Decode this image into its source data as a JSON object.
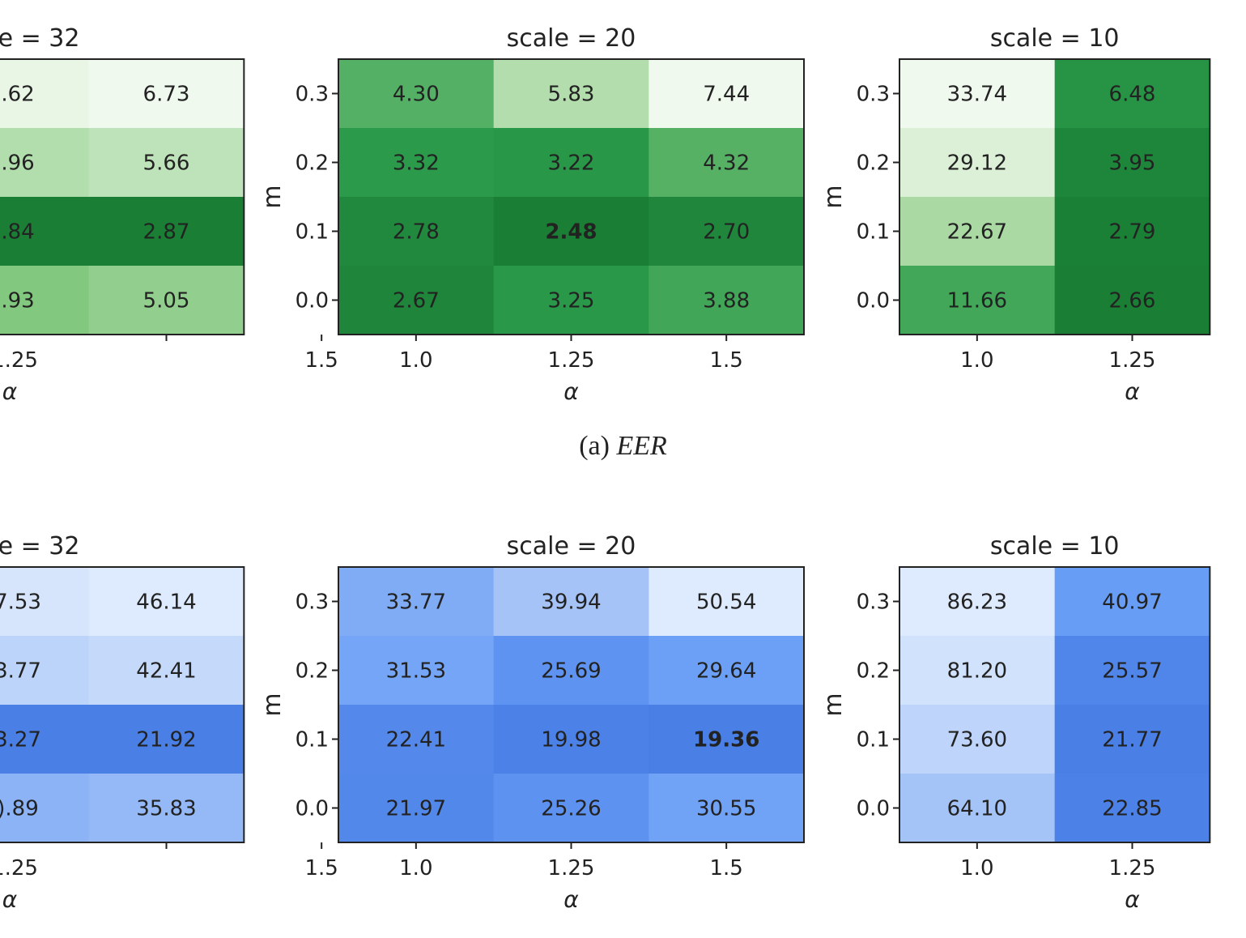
{
  "caption": {
    "prefix": "(a)",
    "label": "EER"
  },
  "chart_data": [
    {
      "type": "heatmap",
      "metric": "EER",
      "colormap": "greens",
      "title": "e = 32",
      "xlabel": "α",
      "x_tick_labels": [
        "1.25",
        "1.5"
      ],
      "rows": [
        "0.3",
        "0.2",
        "0.1",
        "0.0"
      ],
      "cell_text": [
        [
          ".62",
          "6.73"
        ],
        [
          ".96",
          "5.66"
        ],
        [
          ".84",
          "2.87"
        ],
        [
          ".93",
          "5.05"
        ]
      ],
      "values": [
        [
          null,
          6.73
        ],
        [
          null,
          5.66
        ],
        [
          null,
          2.87
        ],
        [
          null,
          5.05
        ]
      ]
    },
    {
      "type": "heatmap",
      "metric": "EER",
      "colormap": "greens",
      "title": "scale = 20",
      "xlabel": "α",
      "ylabel": "m",
      "x_tick_labels": [
        "1.0",
        "1.25",
        "1.5"
      ],
      "y_tick_labels": [
        "0.3",
        "0.2",
        "0.1",
        "0.0"
      ],
      "rows": [
        "0.3",
        "0.2",
        "0.1",
        "0.0"
      ],
      "cell_text": [
        [
          "4.30",
          "5.83",
          "7.44"
        ],
        [
          "3.32",
          "3.22",
          "4.32"
        ],
        [
          "2.78",
          "2.48",
          "2.70"
        ],
        [
          "2.67",
          "3.25",
          "3.88"
        ]
      ],
      "values": [
        [
          4.3,
          5.83,
          7.44
        ],
        [
          3.32,
          3.22,
          4.32
        ],
        [
          2.78,
          2.48,
          2.7
        ],
        [
          2.67,
          3.25,
          3.88
        ]
      ],
      "bold_cell": [
        2,
        1
      ]
    },
    {
      "type": "heatmap",
      "metric": "EER",
      "colormap": "greens",
      "title": "scale = 10",
      "xlabel": "α",
      "ylabel": "m",
      "x_tick_labels": [
        "1.0",
        "1.25"
      ],
      "y_tick_labels": [
        "0.3",
        "0.2",
        "0.1",
        "0.0"
      ],
      "rows": [
        "0.3",
        "0.2",
        "0.1",
        "0.0"
      ],
      "cell_text": [
        [
          "33.74",
          "6.48"
        ],
        [
          "29.12",
          "3.95"
        ],
        [
          "22.67",
          "2.79"
        ],
        [
          "11.66",
          "2.66"
        ]
      ],
      "values": [
        [
          33.74,
          6.48
        ],
        [
          29.12,
          3.95
        ],
        [
          22.67,
          2.79
        ],
        [
          11.66,
          2.66
        ]
      ]
    },
    {
      "type": "heatmap",
      "metric": "second",
      "colormap": "blues",
      "title": "e = 32",
      "xlabel": "α",
      "x_tick_labels": [
        "1.25",
        "1.5"
      ],
      "rows": [
        "0.3",
        "0.2",
        "0.1",
        "0.0"
      ],
      "cell_text": [
        [
          "7.53",
          "46.14"
        ],
        [
          "3.77",
          "42.41"
        ],
        [
          "3.27",
          "21.92"
        ],
        [
          ").89",
          "35.83"
        ]
      ],
      "values": [
        [
          null,
          46.14
        ],
        [
          null,
          42.41
        ],
        [
          null,
          21.92
        ],
        [
          null,
          35.83
        ]
      ]
    },
    {
      "type": "heatmap",
      "metric": "second",
      "colormap": "blues",
      "title": "scale = 20",
      "xlabel": "α",
      "ylabel": "m",
      "x_tick_labels": [
        "1.0",
        "1.25",
        "1.5"
      ],
      "y_tick_labels": [
        "0.3",
        "0.2",
        "0.1",
        "0.0"
      ],
      "rows": [
        "0.3",
        "0.2",
        "0.1",
        "0.0"
      ],
      "cell_text": [
        [
          "33.77",
          "39.94",
          "50.54"
        ],
        [
          "31.53",
          "25.69",
          "29.64"
        ],
        [
          "22.41",
          "19.98",
          "19.36"
        ],
        [
          "21.97",
          "25.26",
          "30.55"
        ]
      ],
      "values": [
        [
          33.77,
          39.94,
          50.54
        ],
        [
          31.53,
          25.69,
          29.64
        ],
        [
          22.41,
          19.98,
          19.36
        ],
        [
          21.97,
          25.26,
          30.55
        ]
      ],
      "bold_cell": [
        2,
        2
      ]
    },
    {
      "type": "heatmap",
      "metric": "second",
      "colormap": "blues",
      "title": "scale = 10",
      "xlabel": "α",
      "ylabel": "m",
      "x_tick_labels": [
        "1.0",
        "1.25"
      ],
      "y_tick_labels": [
        "0.3",
        "0.2",
        "0.1",
        "0.0"
      ],
      "rows": [
        "0.3",
        "0.2",
        "0.1",
        "0.0"
      ],
      "cell_text": [
        [
          "86.23",
          "40.97"
        ],
        [
          "81.20",
          "25.57"
        ],
        [
          "73.60",
          "21.77"
        ],
        [
          "64.10",
          "22.85"
        ]
      ],
      "values": [
        [
          86.23,
          40.97
        ],
        [
          81.2,
          25.57
        ],
        [
          73.6,
          21.77
        ],
        [
          64.1,
          22.85
        ]
      ]
    }
  ],
  "colors": {
    "greens": [
      "#f0f9ee",
      "#d9efd4",
      "#b1dcab",
      "#7ec67b",
      "#4aab5e",
      "#2b9a4a",
      "#1a7f35"
    ],
    "blues": [
      "#deeafd",
      "#c3d8fb",
      "#a6c4f7",
      "#86b0f6",
      "#6ca0f6",
      "#5b90ef",
      "#4a7fe6"
    ]
  }
}
